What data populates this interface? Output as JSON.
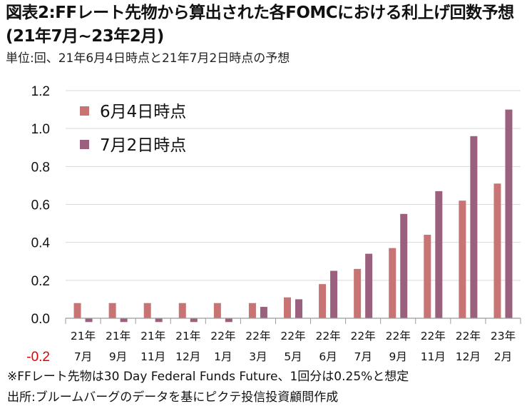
{
  "header": {
    "title": "図表2:FFレート先物から算出された各FOMCにおける利上げ回数予想(21年7月~23年2月)",
    "subtitle": "単位:回、21年6月4日時点と21年7月2日時点の予想"
  },
  "notes": {
    "note1": "※FFレート先物は30 Day Federal Funds Future、1回分は0.25%と想定",
    "note2": "出所:ブルームバーグのデータを基にピクテ投信投資顧問作成"
  },
  "chart_data": {
    "type": "bar",
    "categories": [
      [
        "21年",
        "7月"
      ],
      [
        "21年",
        "9月"
      ],
      [
        "21年",
        "11月"
      ],
      [
        "21年",
        "12月"
      ],
      [
        "22年",
        "1月"
      ],
      [
        "22年",
        "3月"
      ],
      [
        "22年",
        "5月"
      ],
      [
        "22年",
        "6月"
      ],
      [
        "22年",
        "7月"
      ],
      [
        "22年",
        "9月"
      ],
      [
        "22年",
        "11月"
      ],
      [
        "22年",
        "12月"
      ],
      [
        "23年",
        "2月"
      ]
    ],
    "series": [
      {
        "name": "6月4日時点",
        "color": "#c87474",
        "values": [
          0.08,
          0.08,
          0.08,
          0.08,
          0.08,
          0.08,
          0.11,
          0.18,
          0.26,
          0.37,
          0.44,
          0.62,
          0.71
        ]
      },
      {
        "name": "7月2日時点",
        "color": "#9b607d",
        "values": [
          -0.02,
          -0.02,
          -0.02,
          -0.02,
          -0.02,
          0.06,
          0.1,
          0.25,
          0.34,
          0.55,
          0.67,
          0.96,
          1.1
        ]
      }
    ],
    "ylim": [
      -0.2,
      1.2
    ],
    "yticks": [
      {
        "value": 1.2,
        "label": "1.2"
      },
      {
        "value": 1.0,
        "label": "1.0"
      },
      {
        "value": 0.8,
        "label": "0.8"
      },
      {
        "value": 0.6,
        "label": "0.6"
      },
      {
        "value": 0.4,
        "label": "0.4"
      },
      {
        "value": 0.2,
        "label": "0.2"
      },
      {
        "value": 0.0,
        "label": "0.0"
      },
      {
        "value": -0.2,
        "label": "-0.2"
      }
    ],
    "negative_tick_color": "#e00000",
    "grid": true,
    "legend_position": "top-left"
  }
}
